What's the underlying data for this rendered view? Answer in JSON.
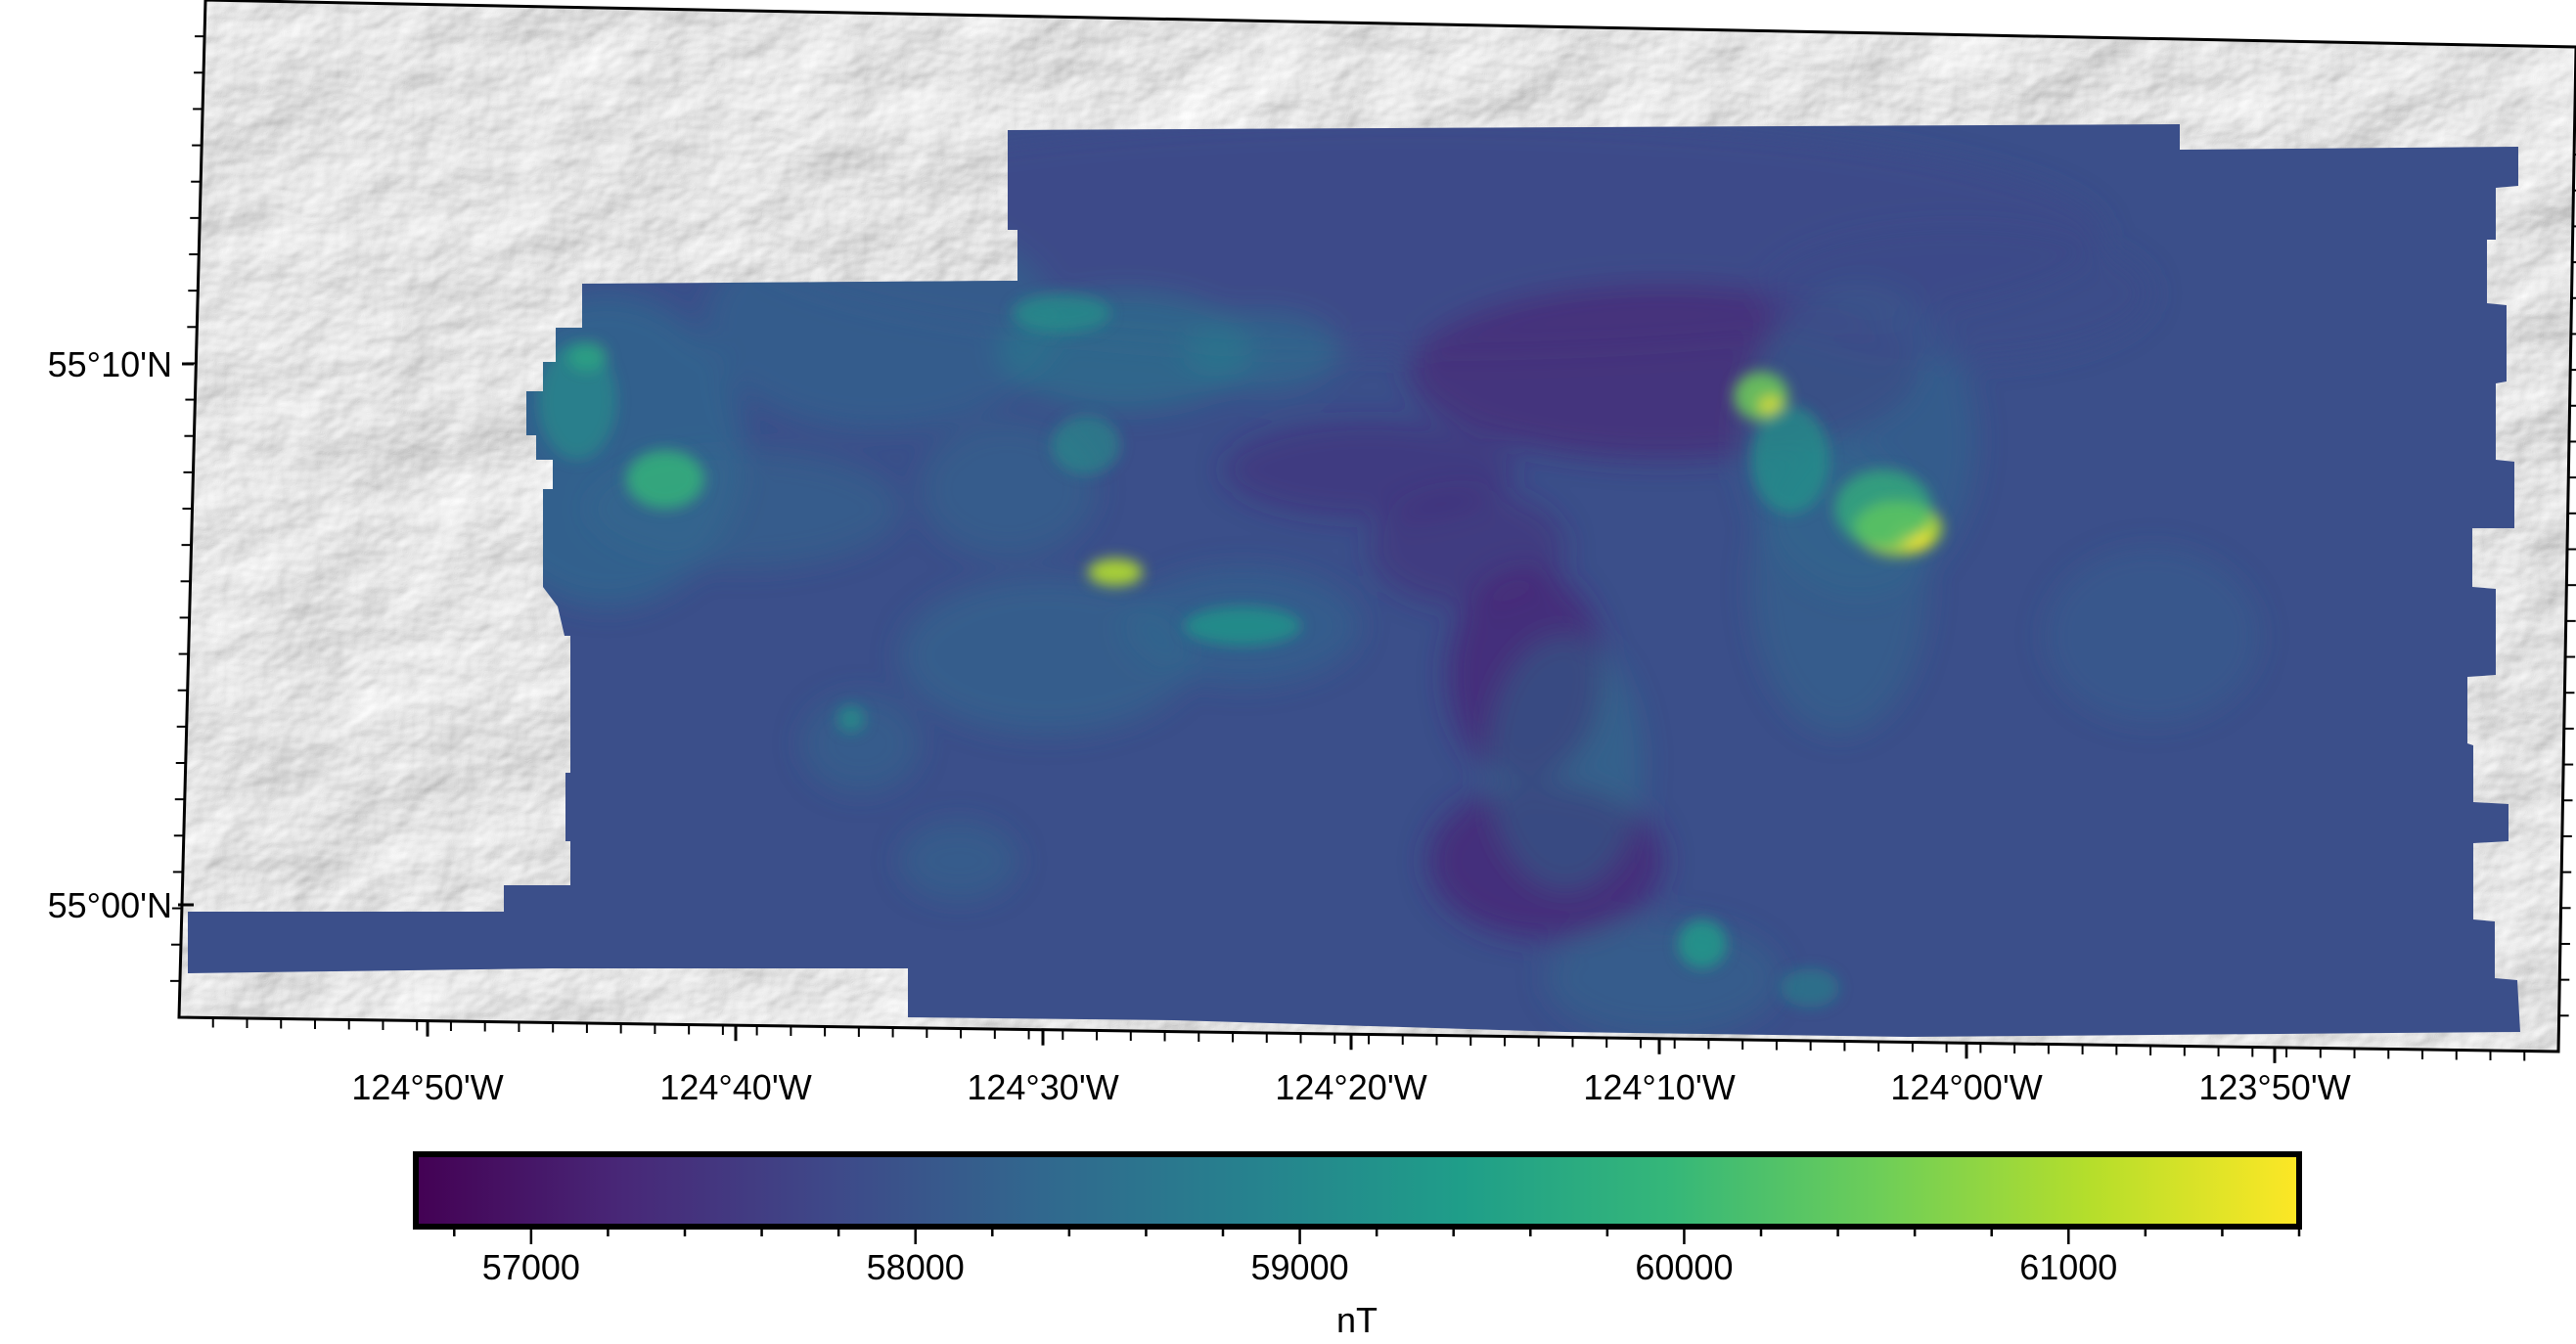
{
  "map": {
    "lat_labels": [
      "55°10'N",
      "55°00'N"
    ],
    "lon_labels": [
      "124°50'W",
      "124°40'W",
      "124°30'W",
      "124°20'W",
      "124°10'W",
      "124°00'W",
      "123°50'W"
    ]
  },
  "colorbar": {
    "colormap": "viridis",
    "range": [
      56700,
      61600
    ],
    "ticks": [
      "57000",
      "58000",
      "59000",
      "60000",
      "61000"
    ],
    "label": "nT"
  },
  "colors": {
    "viridis": [
      "#440154",
      "#482878",
      "#3e4989",
      "#31688e",
      "#26828e",
      "#1f9e89",
      "#35b779",
      "#6ece58",
      "#b5de2b",
      "#fde725"
    ]
  }
}
